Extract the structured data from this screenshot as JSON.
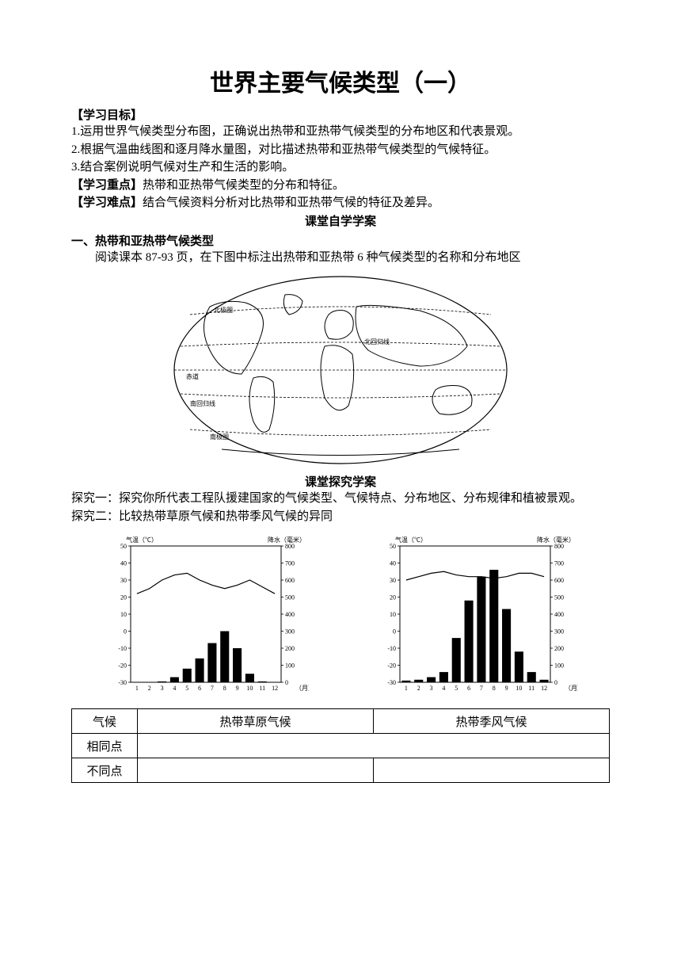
{
  "title": "世界主要气候类型（一）",
  "objectives_head": "【学习目标】",
  "objectives": [
    "1.运用世界气候类型分布图，正确说出热带和亚热带气候类型的分布地区和代表景观。",
    "2.根据气温曲线图和逐月降水量图，对比描述热带和亚热带气候类型的气候特征。",
    "3.结合案例说明气候对生产和生活的影响。"
  ],
  "focus_head": "【学习重点】",
  "focus_text": "热带和亚热带气候类型的分布和特征。",
  "difficulty_head": "【学习难点】",
  "difficulty_text": "结合气候资料分析对比热带和亚热带气候的特征及差异。",
  "self_study_head": "课堂自学学案",
  "section1_head": "一、热带和亚热带气候类型",
  "section1_text": "阅读课本 87-93 页，在下图中标注出热带和亚热带 6 种气候类型的名称和分布地区",
  "map": {
    "labels": {
      "arctic": "北极圈",
      "tropic_n": "北回归线",
      "equator": "赤道",
      "tropic_s": "南回归线",
      "antarctic": "南极圈"
    }
  },
  "inquiry_head": "课堂探究学案",
  "inquiry1": "探究一：探究你所代表工程队援建国家的气候类型、气候特点、分布地区、分布规律和植被景观。",
  "inquiry2": "探究二：比较热带草原气候和热带季风气候的异同",
  "chart_common": {
    "temp_label": "气温（℃）",
    "precip_label": "降水（毫米）",
    "month_label": "（月）",
    "temp_axis": {
      "min": -30,
      "max": 50,
      "step": 10,
      "ticks": [
        -30,
        -20,
        -10,
        0,
        10,
        20,
        30,
        40,
        50
      ]
    },
    "precip_axis": {
      "min": 0,
      "max": 800,
      "step": 100,
      "ticks": [
        0,
        100,
        200,
        300,
        400,
        500,
        600,
        700,
        800
      ]
    },
    "months": [
      1,
      2,
      3,
      4,
      5,
      6,
      7,
      8,
      9,
      10,
      11,
      12
    ],
    "background_color": "#ffffff",
    "axis_color": "#000000",
    "bar_color": "#000000",
    "line_color": "#000000"
  },
  "chart_savanna": {
    "name": "热带草原气候",
    "temp": [
      22,
      25,
      30,
      33,
      34,
      30,
      27,
      25,
      27,
      30,
      26,
      22
    ],
    "precip": [
      0,
      2,
      5,
      30,
      80,
      140,
      230,
      300,
      200,
      50,
      5,
      0
    ]
  },
  "chart_monsoon": {
    "name": "热带季风气候",
    "temp": [
      30,
      32,
      34,
      35,
      33,
      32,
      32,
      31,
      32,
      34,
      34,
      32
    ],
    "precip": [
      10,
      15,
      30,
      60,
      260,
      480,
      620,
      660,
      430,
      180,
      60,
      15
    ]
  },
  "table": {
    "headers": [
      "气候",
      "热带草原气候",
      "热带季风气候"
    ],
    "rows": [
      "相同点",
      "不同点"
    ]
  }
}
